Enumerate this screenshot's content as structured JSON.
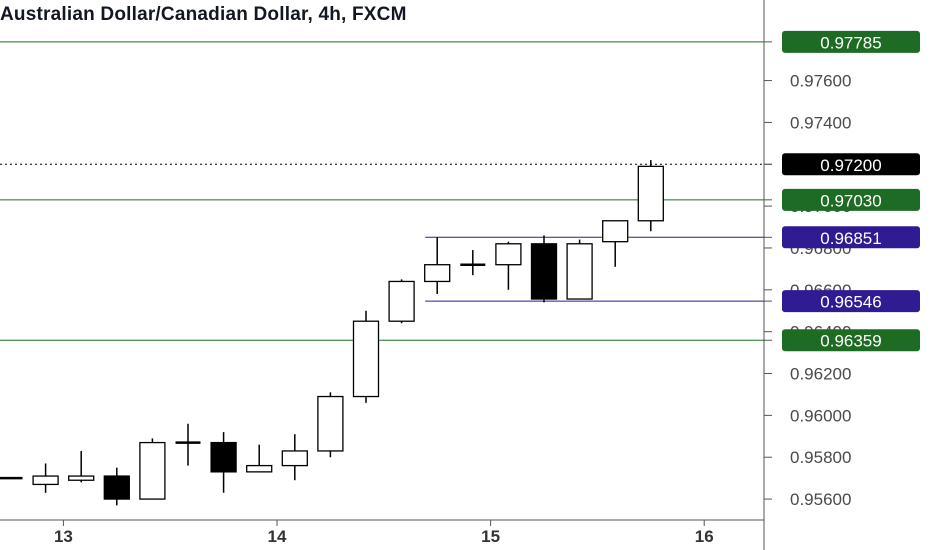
{
  "chart_data": {
    "type": "candlestick",
    "title": "Australian Dollar/Canadian Dollar, 4h, FXCM",
    "ylim": [
      0.955,
      0.97985
    ],
    "y_ticks": [
      "0.95600",
      "0.95800",
      "0.96000",
      "0.96200",
      "0.96400",
      "0.96600",
      "0.96800",
      "0.97000",
      "0.97200",
      "0.97400",
      "0.97600"
    ],
    "x_ticks": [
      {
        "label": "13",
        "index": 1.5
      },
      {
        "label": "14",
        "index": 7.5
      },
      {
        "label": "15",
        "index": 13.5
      },
      {
        "label": "16",
        "index": 19.5
      }
    ],
    "candles": [
      {
        "open": 0.957,
        "high": 0.957,
        "low": 0.957,
        "close": 0.957
      },
      {
        "open": 0.9567,
        "high": 0.9577,
        "low": 0.9563,
        "close": 0.9571
      },
      {
        "open": 0.9569,
        "high": 0.9583,
        "low": 0.9568,
        "close": 0.9571
      },
      {
        "open": 0.9571,
        "high": 0.9575,
        "low": 0.9557,
        "close": 0.956
      },
      {
        "open": 0.956,
        "high": 0.9589,
        "low": 0.956,
        "close": 0.9587
      },
      {
        "open": 0.9587,
        "high": 0.9596,
        "low": 0.9576,
        "close": 0.9587
      },
      {
        "open": 0.9587,
        "high": 0.9592,
        "low": 0.9563,
        "close": 0.9573
      },
      {
        "open": 0.9573,
        "high": 0.9586,
        "low": 0.9573,
        "close": 0.9576
      },
      {
        "open": 0.9576,
        "high": 0.9591,
        "low": 0.9569,
        "close": 0.9583
      },
      {
        "open": 0.9583,
        "high": 0.9611,
        "low": 0.958,
        "close": 0.9609
      },
      {
        "open": 0.9609,
        "high": 0.965,
        "low": 0.9606,
        "close": 0.9645
      },
      {
        "open": 0.9645,
        "high": 0.9665,
        "low": 0.9644,
        "close": 0.9664
      },
      {
        "open": 0.9664,
        "high": 0.96851,
        "low": 0.9658,
        "close": 0.9672
      },
      {
        "open": 0.9672,
        "high": 0.9679,
        "low": 0.9667,
        "close": 0.9672
      },
      {
        "open": 0.9672,
        "high": 0.9683,
        "low": 0.966,
        "close": 0.9682
      },
      {
        "open": 0.9682,
        "high": 0.9686,
        "low": 0.9654,
        "close": 0.96556
      },
      {
        "open": 0.96556,
        "high": 0.9684,
        "low": 0.96556,
        "close": 0.9682
      },
      {
        "open": 0.9683,
        "high": 0.9693,
        "low": 0.9671,
        "close": 0.9693
      },
      {
        "open": 0.9693,
        "high": 0.9722,
        "low": 0.9688,
        "close": 0.9719
      }
    ],
    "horizontal_lines": [
      {
        "value": 0.97785,
        "label": "0.97785",
        "color": "#1e6b23",
        "style": "solid",
        "full_width": true
      },
      {
        "value": 0.9703,
        "label": "0.97030",
        "color": "#1e6b23",
        "style": "solid",
        "full_width": true
      },
      {
        "value": 0.96359,
        "label": "0.96359",
        "color": "#1e6b23",
        "style": "solid",
        "full_width": true
      },
      {
        "value": 0.96851,
        "label": "0.96851",
        "color": "#311b92",
        "style": "solid",
        "full_width": false,
        "from_index": 12
      },
      {
        "value": 0.96546,
        "label": "0.96546",
        "color": "#311b92",
        "style": "solid",
        "full_width": false,
        "from_index": 12
      },
      {
        "value": 0.972,
        "label": "0.97200",
        "color": "#000000",
        "style": "dotted",
        "full_width": true
      }
    ],
    "colors": {
      "up_fill": "#ffffff",
      "down_fill": "#000000",
      "candle_border": "#000000",
      "axis_text": "#4a4a4a"
    }
  }
}
